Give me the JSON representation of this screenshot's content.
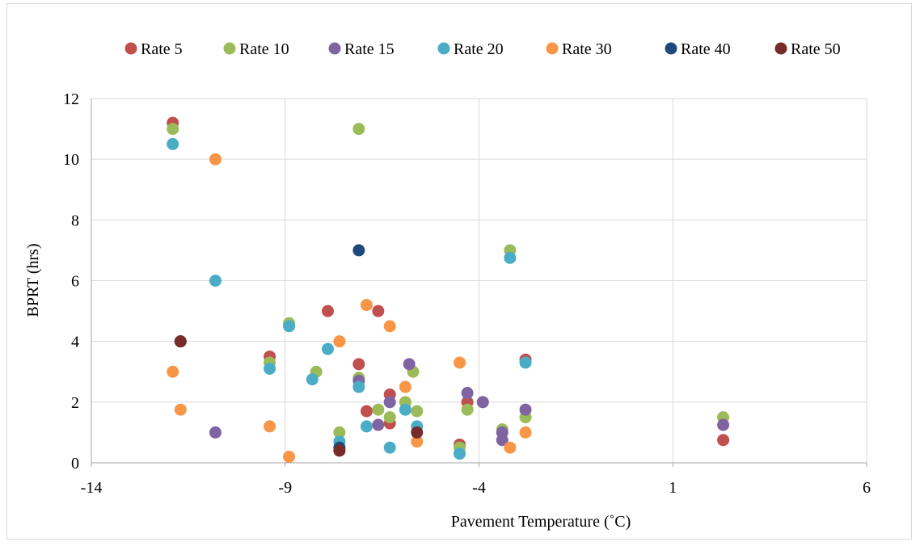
{
  "chart_data": {
    "type": "scatter",
    "xlabel": "Pavement Temperature (˚C)",
    "ylabel": "BPRT  (hrs)",
    "xlim": [
      -14,
      6
    ],
    "ylim": [
      0,
      12
    ],
    "x_ticks": [
      -14,
      -9,
      -4,
      1,
      6
    ],
    "y_ticks": [
      0,
      2,
      4,
      6,
      8,
      10,
      12
    ],
    "grid": true,
    "legend_position": "top",
    "series": [
      {
        "name": "Rate 5",
        "color": "#c0504d",
        "points": [
          [
            -11.9,
            11.2
          ],
          [
            -9.4,
            3.5
          ],
          [
            -7.9,
            5.0
          ],
          [
            -7.1,
            3.25
          ],
          [
            -6.9,
            1.7
          ],
          [
            -6.6,
            5.0
          ],
          [
            -6.3,
            2.25
          ],
          [
            -6.3,
            1.3
          ],
          [
            -4.5,
            0.6
          ],
          [
            -4.3,
            2.0
          ],
          [
            -2.8,
            3.4
          ],
          [
            2.3,
            0.75
          ]
        ]
      },
      {
        "name": "Rate 10",
        "color": "#9bbb59",
        "points": [
          [
            -11.9,
            11.0
          ],
          [
            -9.4,
            3.3
          ],
          [
            -8.9,
            4.6
          ],
          [
            -8.2,
            3.0
          ],
          [
            -7.6,
            1.0
          ],
          [
            -7.1,
            2.8
          ],
          [
            -7.1,
            11.0
          ],
          [
            -6.6,
            1.75
          ],
          [
            -6.3,
            1.5
          ],
          [
            -5.9,
            2.0
          ],
          [
            -5.7,
            3.0
          ],
          [
            -5.6,
            1.7
          ],
          [
            -4.5,
            0.5
          ],
          [
            -4.3,
            1.75
          ],
          [
            -3.4,
            1.1
          ],
          [
            -3.2,
            7.0
          ],
          [
            -2.8,
            1.5
          ],
          [
            2.3,
            1.5
          ]
        ]
      },
      {
        "name": "Rate 15",
        "color": "#8064a2",
        "points": [
          [
            -10.8,
            1.0
          ],
          [
            -7.1,
            2.7
          ],
          [
            -6.6,
            1.25
          ],
          [
            -6.3,
            2.0
          ],
          [
            -5.8,
            3.25
          ],
          [
            -4.3,
            2.3
          ],
          [
            -3.9,
            2.0
          ],
          [
            -3.4,
            0.75
          ],
          [
            -3.4,
            1.0
          ],
          [
            -2.8,
            1.75
          ],
          [
            2.3,
            1.25
          ]
        ]
      },
      {
        "name": "Rate 20",
        "color": "#4bacc6",
        "points": [
          [
            -11.9,
            10.5
          ],
          [
            -10.8,
            6.0
          ],
          [
            -9.4,
            3.1
          ],
          [
            -8.9,
            4.5
          ],
          [
            -8.3,
            2.75
          ],
          [
            -7.9,
            3.75
          ],
          [
            -7.6,
            0.7
          ],
          [
            -7.1,
            2.5
          ],
          [
            -6.9,
            1.2
          ],
          [
            -6.3,
            0.5
          ],
          [
            -5.9,
            1.75
          ],
          [
            -5.6,
            1.2
          ],
          [
            -4.5,
            0.3
          ],
          [
            -3.2,
            6.75
          ],
          [
            -2.8,
            3.3
          ]
        ]
      },
      {
        "name": "Rate 30",
        "color": "#f79646",
        "points": [
          [
            -11.9,
            3.0
          ],
          [
            -11.7,
            1.75
          ],
          [
            -10.8,
            10.0
          ],
          [
            -9.4,
            1.2
          ],
          [
            -8.9,
            0.2
          ],
          [
            -7.6,
            4.0
          ],
          [
            -6.9,
            5.2
          ],
          [
            -6.3,
            4.5
          ],
          [
            -5.9,
            2.5
          ],
          [
            -5.6,
            0.7
          ],
          [
            -4.5,
            3.3
          ],
          [
            -3.2,
            0.5
          ],
          [
            -2.8,
            1.0
          ]
        ]
      },
      {
        "name": "Rate 40",
        "color": "#1f497d",
        "points": [
          [
            -11.7,
            4.0
          ],
          [
            -7.6,
            0.5
          ],
          [
            -7.1,
            7.0
          ]
        ]
      },
      {
        "name": "Rate 50",
        "color": "#772c2a",
        "points": [
          [
            -11.7,
            4.0
          ],
          [
            -7.6,
            0.4
          ],
          [
            -5.6,
            1.0
          ]
        ]
      }
    ]
  }
}
